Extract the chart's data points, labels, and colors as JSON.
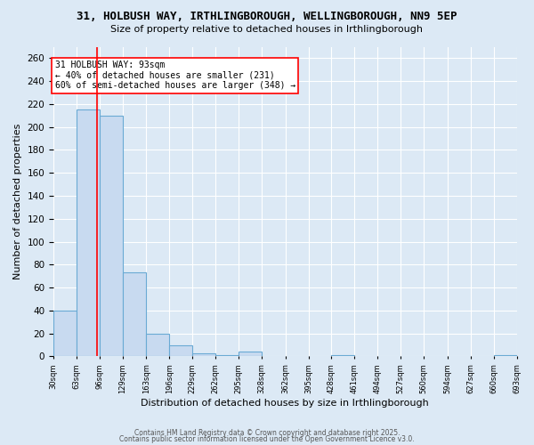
{
  "title_line1": "31, HOLBUSH WAY, IRTHLINGBOROUGH, WELLINGBOROUGH, NN9 5EP",
  "title_line2": "Size of property relative to detached houses in Irthlingborough",
  "xlabel": "Distribution of detached houses by size in Irthlingborough",
  "ylabel": "Number of detached properties",
  "footer_line1": "Contains HM Land Registry data © Crown copyright and database right 2025.",
  "footer_line2": "Contains public sector information licensed under the Open Government Licence v3.0.",
  "bin_edges": [
    30,
    63,
    96,
    129,
    163,
    196,
    229,
    262,
    295,
    328,
    362,
    395,
    428,
    461,
    494,
    527,
    560,
    594,
    627,
    660,
    693
  ],
  "bin_labels": [
    "30sqm",
    "63sqm",
    "96sqm",
    "129sqm",
    "163sqm",
    "196sqm",
    "229sqm",
    "262sqm",
    "295sqm",
    "328sqm",
    "362sqm",
    "395sqm",
    "428sqm",
    "461sqm",
    "494sqm",
    "527sqm",
    "560sqm",
    "594sqm",
    "627sqm",
    "660sqm",
    "693sqm"
  ],
  "counts": [
    40,
    215,
    210,
    73,
    20,
    10,
    3,
    1,
    4,
    0,
    0,
    0,
    1,
    0,
    0,
    0,
    0,
    0,
    0,
    1
  ],
  "bar_color": "#c8daf0",
  "bar_edge_color": "#6aaad4",
  "red_line_x": 93,
  "annotation_text": "31 HOLBUSH WAY: 93sqm\n← 40% of detached houses are smaller (231)\n60% of semi-detached houses are larger (348) →",
  "annotation_box_color": "white",
  "annotation_box_edge": "red",
  "red_line_color": "red",
  "ylim": [
    0,
    270
  ],
  "yticks": [
    0,
    20,
    40,
    60,
    80,
    100,
    120,
    140,
    160,
    180,
    200,
    220,
    240,
    260
  ],
  "bg_color": "#dce9f5",
  "plot_bg_color": "#dce9f5",
  "grid_color": "white",
  "title_fontsize": 9,
  "subtitle_fontsize": 8,
  "footer_fontsize": 5.5
}
